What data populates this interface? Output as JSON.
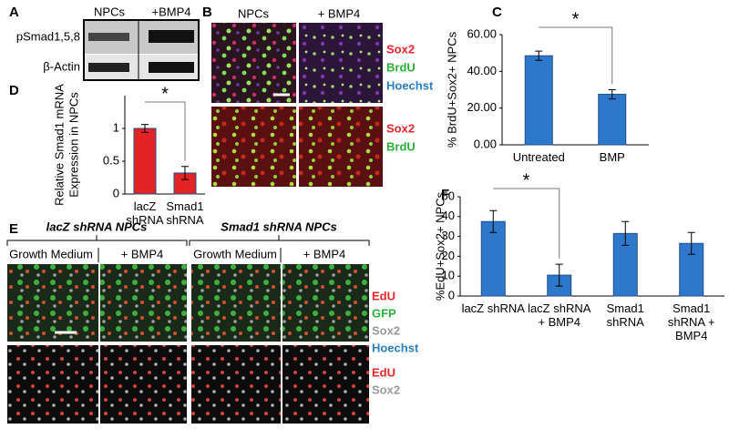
{
  "panel_A": {
    "label": "A",
    "columns": [
      "NPCs",
      "+BMP4"
    ],
    "rows": [
      "pSmad1,5,8",
      "β-Actin"
    ]
  },
  "panel_B": {
    "label": "B",
    "columns": [
      "NPCs",
      "+ BMP4"
    ],
    "legend_top": [
      {
        "name": "Sox2",
        "color": "#e8262b"
      },
      {
        "name": "BrdU",
        "color": "#2fae3a"
      },
      {
        "name": "Hoechst",
        "color": "#2b7fc4"
      }
    ],
    "legend_bottom": [
      {
        "name": "Sox2",
        "color": "#e8262b"
      },
      {
        "name": "BrdU",
        "color": "#2fae3a"
      }
    ]
  },
  "panel_E": {
    "label": "E",
    "groups": [
      {
        "title": "lacZ shRNA NPCs",
        "conditions": [
          "Growth Medium",
          "+ BMP4"
        ]
      },
      {
        "title": "Smad1 shRNA NPCs",
        "conditions": [
          "Growth Medium",
          "+ BMP4"
        ]
      }
    ],
    "legend_top": [
      {
        "name": "EdU",
        "color": "#e8262b"
      },
      {
        "name": "GFP",
        "color": "#2fae3a"
      },
      {
        "name": "Sox2",
        "color": "#9a9a9a"
      },
      {
        "name": "Hoechst",
        "color": "#2b7fc4"
      }
    ],
    "legend_bottom": [
      {
        "name": "EdU",
        "color": "#e8262b"
      },
      {
        "name": "Sox2",
        "color": "#9a9a9a"
      }
    ]
  },
  "chart_data": [
    {
      "type": "bar",
      "panel_label": "C",
      "ylabel": [
        "% BrdU+Sox2+ NPCs"
      ],
      "categories": [
        "Untreated",
        "BMP"
      ],
      "values": [
        48.5,
        27.5
      ],
      "errors": [
        2.5,
        2.5
      ],
      "color": "#2e78cc",
      "ylim": [
        0,
        60
      ],
      "yticks": [
        {
          "value": 0,
          "label": "0.00"
        },
        {
          "value": 20,
          "label": "20.00"
        },
        {
          "value": 40,
          "label": "40.00"
        },
        {
          "value": 60,
          "label": "60.00"
        }
      ],
      "annotation": "*"
    },
    {
      "type": "bar",
      "panel_label": "D",
      "ylabel": [
        "Relative Smad1 mRNA",
        "Expression in NPCs"
      ],
      "categories": [
        "lacZ shRNA",
        "Smad1 shRNA"
      ],
      "values": [
        1.0,
        0.32
      ],
      "errors": [
        0.06,
        0.1
      ],
      "color": "#e42424",
      "ylim": [
        0,
        1.5
      ],
      "yticks": [
        0,
        0.5,
        1
      ],
      "annotation": "*"
    },
    {
      "type": "bar",
      "panel_label": "F",
      "ylabel": [
        "%EdU+Sox2+ NPCs"
      ],
      "categories": [
        "lacZ shRNA",
        "lacZ shRNA + BMP4",
        "Smad1 shRNA",
        "Smad1 shRNA + BMP4"
      ],
      "values": [
        37.5,
        10.5,
        31.5,
        26.5
      ],
      "errors": [
        5.5,
        5.5,
        6,
        5.5
      ],
      "color": "#2e78cc",
      "ylim": [
        0,
        50
      ],
      "yticks": [
        0,
        10,
        20,
        30,
        40,
        50
      ],
      "annotation": "*"
    }
  ]
}
